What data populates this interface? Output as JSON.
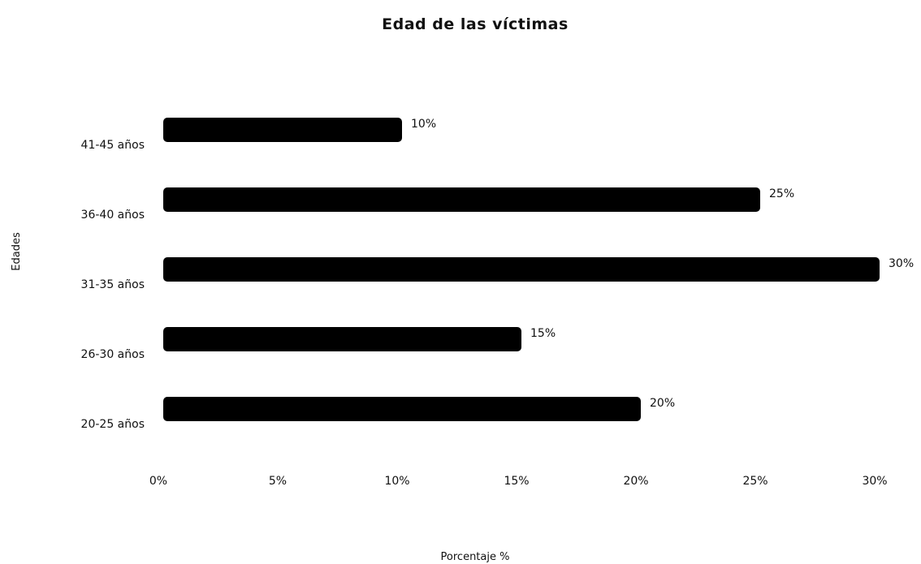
{
  "chart_data": {
    "type": "bar",
    "orientation": "horizontal",
    "title": "Edad de las víctimas",
    "xlabel": "Porcentaje %",
    "ylabel": "Edades",
    "categories": [
      "20-25 años",
      "26-30 años",
      "31-35 años",
      "36-40 años",
      "41-45 años"
    ],
    "values": [
      20,
      15,
      30,
      25,
      10
    ],
    "data_labels": [
      "20%",
      "15%",
      "30%",
      "25%",
      "10%"
    ],
    "x_ticks": [
      "0%",
      "5%",
      "10%",
      "15%",
      "20%",
      "25%",
      "30%"
    ],
    "xlim": [
      0,
      30
    ],
    "bar_color": "#000000",
    "grid": false,
    "legend": "none"
  }
}
